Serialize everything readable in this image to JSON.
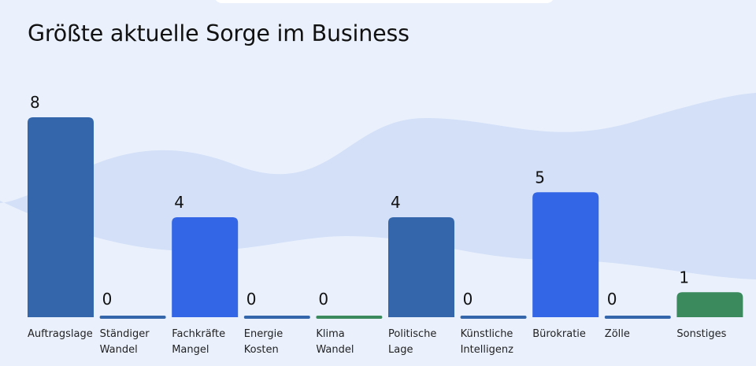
{
  "colors": {
    "background": "#eaf1fd",
    "wave": "#d3e0f7",
    "dark_blue": "#3366aa",
    "bright_blue": "#3366e6",
    "green": "#3a8a5e"
  },
  "chart_data": {
    "type": "bar",
    "title": "Größte aktuelle Sorge im Business",
    "xlabel": "",
    "ylabel": "",
    "ylim": [
      0,
      8
    ],
    "grid": false,
    "categories": [
      [
        "Auftragslage"
      ],
      [
        "Ständiger",
        "Wandel"
      ],
      [
        "Fachkräfte",
        "Mangel"
      ],
      [
        "Energie",
        "Kosten"
      ],
      [
        "Klima",
        "Wandel"
      ],
      [
        "Politische",
        "Lage"
      ],
      [
        "Künstliche",
        "Intelligenz"
      ],
      [
        "Bürokratie"
      ],
      [
        "Zölle"
      ],
      [
        "Sonstiges"
      ]
    ],
    "values": [
      8,
      0,
      4,
      0,
      0,
      4,
      0,
      5,
      0,
      1
    ],
    "bar_colors": [
      "#3366aa",
      "#3366aa",
      "#3366e6",
      "#3366aa",
      "#3a8a5e",
      "#3366aa",
      "#3366aa",
      "#3366e6",
      "#3366aa",
      "#3a8a5e"
    ]
  }
}
